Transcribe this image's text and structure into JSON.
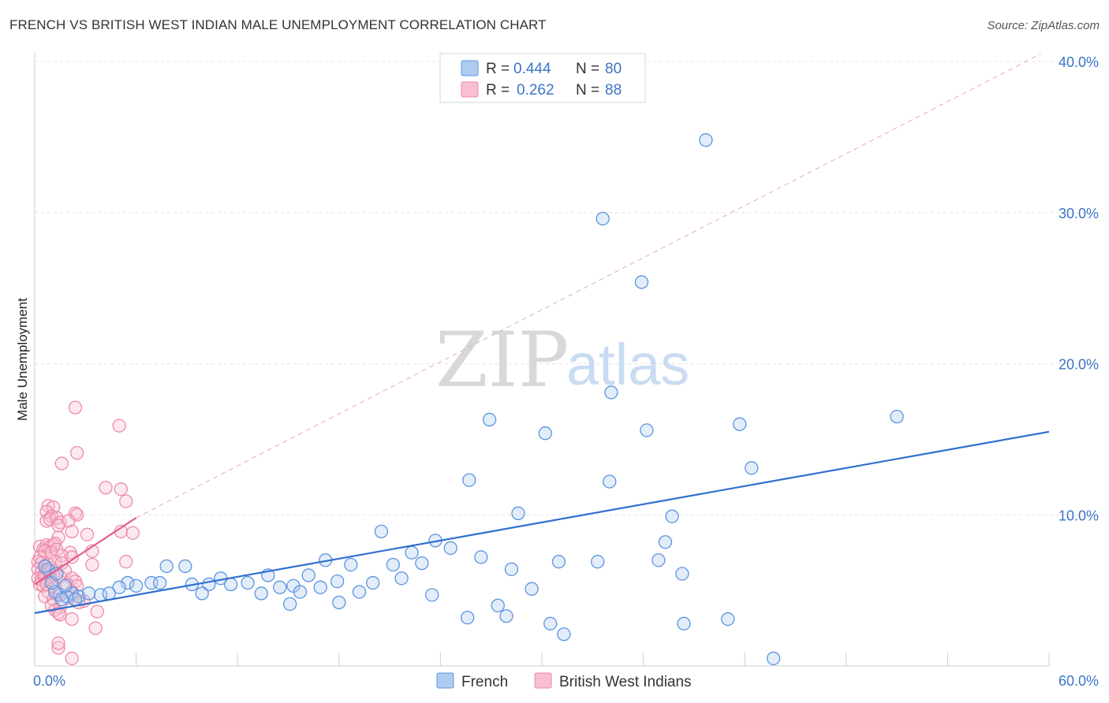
{
  "title": "FRENCH VS BRITISH WEST INDIAN MALE UNEMPLOYMENT CORRELATION CHART",
  "source": "Source: ZipAtlas.com",
  "watermark": {
    "zip": "ZIP",
    "atlas": "atlas"
  },
  "chart_data": {
    "type": "scatter",
    "title": "FRENCH VS BRITISH WEST INDIAN MALE UNEMPLOYMENT CORRELATION CHART",
    "xlabel": "",
    "ylabel": "Male Unemployment",
    "xlim": [
      0,
      60
    ],
    "ylim": [
      0,
      40
    ],
    "x_tick_labels": [
      {
        "value": 0,
        "label": "0.0%"
      },
      {
        "value": 60,
        "label": "60.0%"
      }
    ],
    "y_tick_labels": [
      {
        "value": 10,
        "label": "10.0%"
      },
      {
        "value": 20,
        "label": "20.0%"
      },
      {
        "value": 30,
        "label": "30.0%"
      },
      {
        "value": 40,
        "label": "40.0%"
      }
    ],
    "grid": true,
    "legend_position": "top-center",
    "colors": {
      "french": "#5b94e0",
      "french_fill": "#aecbf0",
      "bwi": "#ee8aa8",
      "bwi_fill": "#f7bfd0",
      "french_line": "#2f6fd0",
      "bwi_line": "#e0608a"
    },
    "series": [
      {
        "name": "French",
        "r_label": "R =",
        "r": "0.444",
        "n_label": "N =",
        "n": "80",
        "trend": [
          [
            0,
            3.5
          ],
          [
            60,
            15.5
          ]
        ],
        "points": [
          [
            39.7,
            34.8
          ],
          [
            33.6,
            29.6
          ],
          [
            35.9,
            25.4
          ],
          [
            34.1,
            18.1
          ],
          [
            26.9,
            16.3
          ],
          [
            30.2,
            15.4
          ],
          [
            36.2,
            15.6
          ],
          [
            41.7,
            16.0
          ],
          [
            51.0,
            16.5
          ],
          [
            25.7,
            12.3
          ],
          [
            34.0,
            12.2
          ],
          [
            42.4,
            13.1
          ],
          [
            28.6,
            10.1
          ],
          [
            37.7,
            9.9
          ],
          [
            20.5,
            8.9
          ],
          [
            37.3,
            8.2
          ],
          [
            23.7,
            8.3
          ],
          [
            24.6,
            7.8
          ],
          [
            17.2,
            7.0
          ],
          [
            22.3,
            7.5
          ],
          [
            26.4,
            7.2
          ],
          [
            31.0,
            6.9
          ],
          [
            33.3,
            6.9
          ],
          [
            36.9,
            7.0
          ],
          [
            38.3,
            6.1
          ],
          [
            18.7,
            6.7
          ],
          [
            21.2,
            6.7
          ],
          [
            22.9,
            6.8
          ],
          [
            28.2,
            6.4
          ],
          [
            7.8,
            6.6
          ],
          [
            8.9,
            6.6
          ],
          [
            16.2,
            6.0
          ],
          [
            13.8,
            6.0
          ],
          [
            11.0,
            5.8
          ],
          [
            12.6,
            5.5
          ],
          [
            10.3,
            5.4
          ],
          [
            11.6,
            5.4
          ],
          [
            9.3,
            5.4
          ],
          [
            14.5,
            5.2
          ],
          [
            17.9,
            5.6
          ],
          [
            20.0,
            5.5
          ],
          [
            21.7,
            5.8
          ],
          [
            15.3,
            5.3
          ],
          [
            16.9,
            5.2
          ],
          [
            5.5,
            5.5
          ],
          [
            6.0,
            5.3
          ],
          [
            6.9,
            5.5
          ],
          [
            7.4,
            5.5
          ],
          [
            5.0,
            5.2
          ],
          [
            9.9,
            4.8
          ],
          [
            13.4,
            4.8
          ],
          [
            15.7,
            4.9
          ],
          [
            19.2,
            4.9
          ],
          [
            23.5,
            4.7
          ],
          [
            29.4,
            5.1
          ],
          [
            2.2,
            4.8
          ],
          [
            2.6,
            4.6
          ],
          [
            3.2,
            4.8
          ],
          [
            3.9,
            4.7
          ],
          [
            4.4,
            4.8
          ],
          [
            1.5,
            4.7
          ],
          [
            1.9,
            4.6
          ],
          [
            2.4,
            4.4
          ],
          [
            1.2,
            4.9
          ],
          [
            1.0,
            5.5
          ],
          [
            0.8,
            6.4
          ],
          [
            1.3,
            6.1
          ],
          [
            0.6,
            6.6
          ],
          [
            1.8,
            5.3
          ],
          [
            1.6,
            4.4
          ],
          [
            15.1,
            4.1
          ],
          [
            18.0,
            4.2
          ],
          [
            25.6,
            3.2
          ],
          [
            27.4,
            4.0
          ],
          [
            27.9,
            3.3
          ],
          [
            30.5,
            2.8
          ],
          [
            31.3,
            2.1
          ],
          [
            38.4,
            2.8
          ],
          [
            41.0,
            3.1
          ],
          [
            43.7,
            0.5
          ]
        ]
      },
      {
        "name": "British West Indians",
        "r_label": "R =",
        "r": "0.262",
        "n_label": "N =",
        "n": "88",
        "trend": [
          [
            0,
            5.4
          ],
          [
            6.0,
            9.8
          ]
        ],
        "points": [
          [
            2.4,
            17.1
          ],
          [
            5.0,
            15.9
          ],
          [
            2.5,
            14.1
          ],
          [
            1.6,
            13.4
          ],
          [
            4.2,
            11.8
          ],
          [
            5.1,
            11.7
          ],
          [
            5.4,
            10.9
          ],
          [
            0.8,
            10.6
          ],
          [
            1.1,
            10.5
          ],
          [
            0.7,
            10.2
          ],
          [
            1.0,
            9.9
          ],
          [
            2.4,
            10.1
          ],
          [
            2.5,
            10.0
          ],
          [
            0.7,
            9.6
          ],
          [
            0.9,
            9.7
          ],
          [
            1.3,
            9.8
          ],
          [
            1.5,
            9.5
          ],
          [
            2.0,
            9.6
          ],
          [
            1.4,
            9.3
          ],
          [
            2.2,
            8.9
          ],
          [
            3.1,
            8.7
          ],
          [
            5.1,
            8.9
          ],
          [
            5.8,
            8.8
          ],
          [
            1.4,
            8.5
          ],
          [
            0.3,
            7.9
          ],
          [
            0.5,
            7.7
          ],
          [
            0.7,
            8.0
          ],
          [
            0.9,
            7.9
          ],
          [
            1.1,
            8.0
          ],
          [
            1.2,
            8.1
          ],
          [
            0.6,
            7.6
          ],
          [
            1.0,
            7.5
          ],
          [
            1.3,
            7.7
          ],
          [
            2.1,
            7.5
          ],
          [
            0.3,
            7.2
          ],
          [
            1.6,
            7.3
          ],
          [
            2.2,
            7.2
          ],
          [
            3.4,
            7.6
          ],
          [
            0.2,
            6.9
          ],
          [
            0.4,
            6.8
          ],
          [
            0.6,
            6.6
          ],
          [
            0.8,
            6.7
          ],
          [
            1.0,
            6.5
          ],
          [
            1.2,
            6.9
          ],
          [
            1.6,
            6.8
          ],
          [
            3.4,
            6.7
          ],
          [
            5.4,
            6.9
          ],
          [
            0.2,
            6.4
          ],
          [
            0.4,
            6.2
          ],
          [
            0.5,
            6.0
          ],
          [
            0.7,
            6.3
          ],
          [
            0.9,
            6.2
          ],
          [
            1.1,
            6.0
          ],
          [
            1.3,
            6.1
          ],
          [
            1.8,
            6.3
          ],
          [
            0.2,
            5.8
          ],
          [
            0.4,
            5.7
          ],
          [
            0.6,
            5.9
          ],
          [
            0.8,
            5.6
          ],
          [
            1.0,
            5.7
          ],
          [
            1.5,
            5.9
          ],
          [
            2.2,
            5.8
          ],
          [
            2.4,
            5.6
          ],
          [
            0.3,
            5.4
          ],
          [
            0.5,
            5.3
          ],
          [
            0.7,
            5.4
          ],
          [
            1.2,
            5.2
          ],
          [
            1.9,
            5.4
          ],
          [
            2.5,
            5.3
          ],
          [
            0.8,
            4.9
          ],
          [
            1.4,
            4.8
          ],
          [
            2.2,
            4.9
          ],
          [
            0.6,
            4.6
          ],
          [
            1.1,
            4.4
          ],
          [
            2.0,
            4.5
          ],
          [
            2.9,
            4.3
          ],
          [
            1.0,
            4.0
          ],
          [
            1.5,
            3.9
          ],
          [
            2.6,
            4.2
          ],
          [
            1.2,
            3.7
          ],
          [
            3.7,
            3.6
          ],
          [
            1.4,
            3.5
          ],
          [
            1.5,
            3.4
          ],
          [
            2.2,
            3.1
          ],
          [
            3.6,
            2.5
          ],
          [
            1.4,
            1.2
          ],
          [
            1.4,
            1.5
          ],
          [
            2.2,
            0.5
          ]
        ]
      }
    ]
  }
}
